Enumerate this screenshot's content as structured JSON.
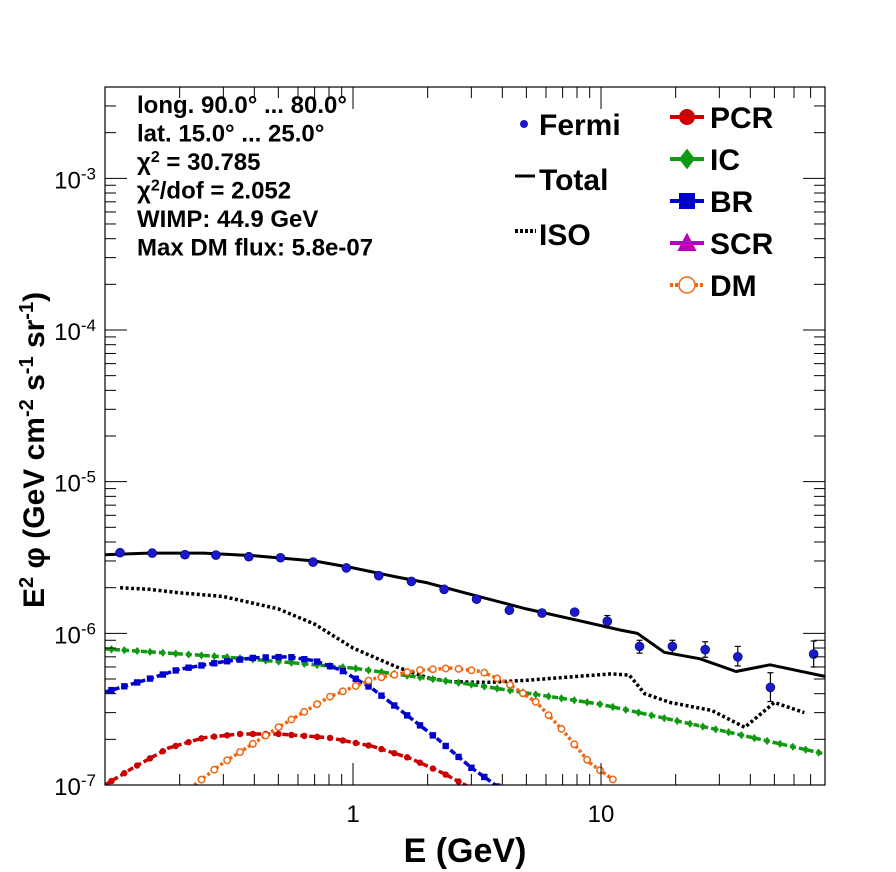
{
  "chart_data": {
    "type": "line",
    "xlabel": "E (GeV)",
    "ylabel_parts": [
      "E",
      "2",
      "  φ (GeV cm",
      "-2",
      " s",
      "-1",
      " sr",
      "-1",
      ")"
    ],
    "x_scale": "log",
    "y_scale": "log",
    "xlim": [
      0.1,
      80
    ],
    "ylim": [
      1e-07,
      0.004
    ],
    "x_ticks": [
      {
        "v": 1,
        "label": "1"
      },
      {
        "v": 10,
        "label": "10"
      }
    ],
    "y_ticks": [
      {
        "v": 1e-07,
        "base": "10",
        "exp": "-7"
      },
      {
        "v": 1e-06,
        "base": "10",
        "exp": "-6"
      },
      {
        "v": 1e-05,
        "base": "10",
        "exp": "-5"
      },
      {
        "v": 0.0001,
        "base": "10",
        "exp": "-4"
      },
      {
        "v": 0.001,
        "base": "10",
        "exp": "-3"
      }
    ],
    "info_lines": [
      [
        "long. 90.0° ... 80.0°"
      ],
      [
        "lat. 15.0° ... 25.0°"
      ],
      [
        "χ",
        "2",
        " = 30.785"
      ],
      [
        "χ",
        "2",
        "/dof = 2.052"
      ],
      [
        "WIMP: 44.9 GeV"
      ],
      [
        "Max DM flux: 5.8e-07"
      ]
    ],
    "legend": [
      {
        "label": "Fermi",
        "color": "#1a1acc",
        "marker": "dot"
      },
      {
        "label": "Total",
        "color": "#000000",
        "marker": "line"
      },
      {
        "label": "ISO",
        "color": "#000000",
        "marker": "dotted"
      },
      {
        "label": "PCR",
        "color": "#cc0000",
        "marker": "circle"
      },
      {
        "label": "IC",
        "color": "#119911",
        "marker": "diamond"
      },
      {
        "label": "BR",
        "color": "#0000cc",
        "marker": "square"
      },
      {
        "label": "SCR",
        "color": "#bb00bb",
        "marker": "triangle"
      },
      {
        "label": "DM",
        "color": "#ee6611",
        "marker": "open-circle"
      }
    ],
    "fermi": {
      "color": "#1a1acc",
      "points": [
        [
          0.115,
          3.4e-06
        ],
        [
          0.155,
          3.38e-06
        ],
        [
          0.21,
          3.3e-06
        ],
        [
          0.28,
          3.28e-06
        ],
        [
          0.38,
          3.2e-06
        ],
        [
          0.51,
          3.15e-06
        ],
        [
          0.69,
          2.95e-06
        ],
        [
          0.94,
          2.7e-06
        ],
        [
          1.27,
          2.4e-06
        ],
        [
          1.72,
          2.2e-06
        ],
        [
          2.33,
          1.95e-06
        ],
        [
          3.15,
          1.68e-06
        ],
        [
          4.27,
          1.42e-06
        ],
        [
          5.78,
          1.36e-06
        ],
        [
          7.83,
          1.38e-06
        ],
        [
          10.6,
          1.2e-06
        ],
        [
          14.3,
          8.2e-07
        ],
        [
          19.4,
          8.2e-07
        ],
        [
          26.3,
          7.8e-07
        ],
        [
          35.6,
          7e-07
        ],
        [
          48.2,
          4.4e-07
        ],
        [
          72.0,
          7.3e-07
        ]
      ],
      "err_lo": [
        0,
        0,
        0,
        0,
        0,
        0,
        0,
        0,
        0,
        0,
        0,
        0,
        0,
        0,
        0,
        1.1e-07,
        8e-08,
        8e-08,
        8.5e-08,
        9e-08,
        8.5e-08,
        1.3e-07
      ],
      "err_hi": [
        0,
        0,
        0,
        0,
        0,
        0,
        0,
        0,
        0,
        0,
        0,
        0,
        0,
        0,
        0,
        1.1e-07,
        8e-08,
        8e-08,
        1e-07,
        1.2e-07,
        1.1e-07,
        1.6e-07
      ]
    },
    "series": [
      {
        "name": "Total",
        "color": "#000000",
        "style": "solid",
        "marker": "none",
        "points": [
          [
            0.1,
            3.3e-06
          ],
          [
            0.15,
            3.38e-06
          ],
          [
            0.25,
            3.38e-06
          ],
          [
            0.4,
            3.25e-06
          ],
          [
            0.7,
            3e-06
          ],
          [
            1.0,
            2.7e-06
          ],
          [
            1.5,
            2.35e-06
          ],
          [
            2.0,
            2.15e-06
          ],
          [
            3.0,
            1.8e-06
          ],
          [
            5.0,
            1.45e-06
          ],
          [
            8.0,
            1.22e-06
          ],
          [
            12.0,
            1.05e-06
          ],
          [
            14.0,
            1e-06
          ],
          [
            18.0,
            7.5e-07
          ],
          [
            25.0,
            6.8e-07
          ],
          [
            35.0,
            5.6e-07
          ],
          [
            48.0,
            6.2e-07
          ],
          [
            80.0,
            5.2e-07
          ]
        ]
      },
      {
        "name": "ISO",
        "color": "#000000",
        "style": "dotted",
        "marker": "none",
        "points": [
          [
            0.115,
            2e-06
          ],
          [
            0.15,
            1.95e-06
          ],
          [
            0.2,
            1.85e-06
          ],
          [
            0.3,
            1.75e-06
          ],
          [
            0.5,
            1.45e-06
          ],
          [
            0.7,
            1.15e-06
          ],
          [
            1.0,
            8e-07
          ],
          [
            1.5,
            6e-07
          ],
          [
            2.0,
            5.1e-07
          ],
          [
            2.5,
            4.8e-07
          ],
          [
            3.5,
            4.75e-07
          ],
          [
            5.0,
            4.9e-07
          ],
          [
            8.0,
            5.2e-07
          ],
          [
            11.0,
            5.4e-07
          ],
          [
            13.0,
            5.3e-07
          ],
          [
            15.0,
            4e-07
          ],
          [
            19.0,
            3.5e-07
          ],
          [
            28.0,
            3.1e-07
          ],
          [
            38.0,
            2.4e-07
          ],
          [
            50.0,
            3.5e-07
          ],
          [
            66.0,
            3e-07
          ]
        ]
      },
      {
        "name": "IC",
        "color": "#119911",
        "style": "dashed",
        "marker": "diamond",
        "points": [
          [
            0.1,
            7.9e-07
          ],
          [
            0.3,
            7e-07
          ],
          [
            1.0,
            5.9e-07
          ],
          [
            3.0,
            4.6e-07
          ],
          [
            10.0,
            3.4e-07
          ],
          [
            30.0,
            2.3e-07
          ],
          [
            80.0,
            1.6e-07
          ]
        ]
      },
      {
        "name": "BR",
        "color": "#0000cc",
        "style": "dashed",
        "marker": "square",
        "points": [
          [
            0.1,
            4.1e-07
          ],
          [
            0.15,
            5e-07
          ],
          [
            0.2,
            5.8e-07
          ],
          [
            0.3,
            6.5e-07
          ],
          [
            0.4,
            6.9e-07
          ],
          [
            0.55,
            7e-07
          ],
          [
            0.7,
            6.6e-07
          ],
          [
            0.9,
            5.7e-07
          ],
          [
            1.2,
            4.3e-07
          ],
          [
            1.6,
            3e-07
          ],
          [
            2.2,
            2e-07
          ],
          [
            3.0,
            1.3e-07
          ],
          [
            3.6,
            1.05e-07
          ],
          [
            3.9,
            9.5e-08
          ]
        ]
      },
      {
        "name": "PCR",
        "color": "#cc0000",
        "style": "dashed",
        "marker": "circle",
        "points": [
          [
            0.1,
            1e-07
          ],
          [
            0.13,
            1.3e-07
          ],
          [
            0.18,
            1.75e-07
          ],
          [
            0.25,
            2.05e-07
          ],
          [
            0.35,
            2.17e-07
          ],
          [
            0.5,
            2.17e-07
          ],
          [
            0.8,
            2.05e-07
          ],
          [
            1.2,
            1.8e-07
          ],
          [
            1.7,
            1.5e-07
          ],
          [
            2.3,
            1.2e-07
          ],
          [
            2.9,
            9.8e-08
          ]
        ]
      },
      {
        "name": "DM",
        "color": "#ee6611",
        "style": "dotted",
        "marker": "open-circle",
        "points": [
          [
            0.22,
            9.5e-08
          ],
          [
            0.3,
            1.4e-07
          ],
          [
            0.5,
            2.4e-07
          ],
          [
            0.8,
            3.8e-07
          ],
          [
            1.2,
            5e-07
          ],
          [
            1.8,
            5.7e-07
          ],
          [
            2.5,
            5.9e-07
          ],
          [
            3.3,
            5.6e-07
          ],
          [
            4.2,
            4.7e-07
          ],
          [
            5.5,
            3.5e-07
          ],
          [
            7.0,
            2.3e-07
          ],
          [
            9.0,
            1.4e-07
          ],
          [
            11.5,
            1.05e-07
          ]
        ]
      }
    ]
  }
}
